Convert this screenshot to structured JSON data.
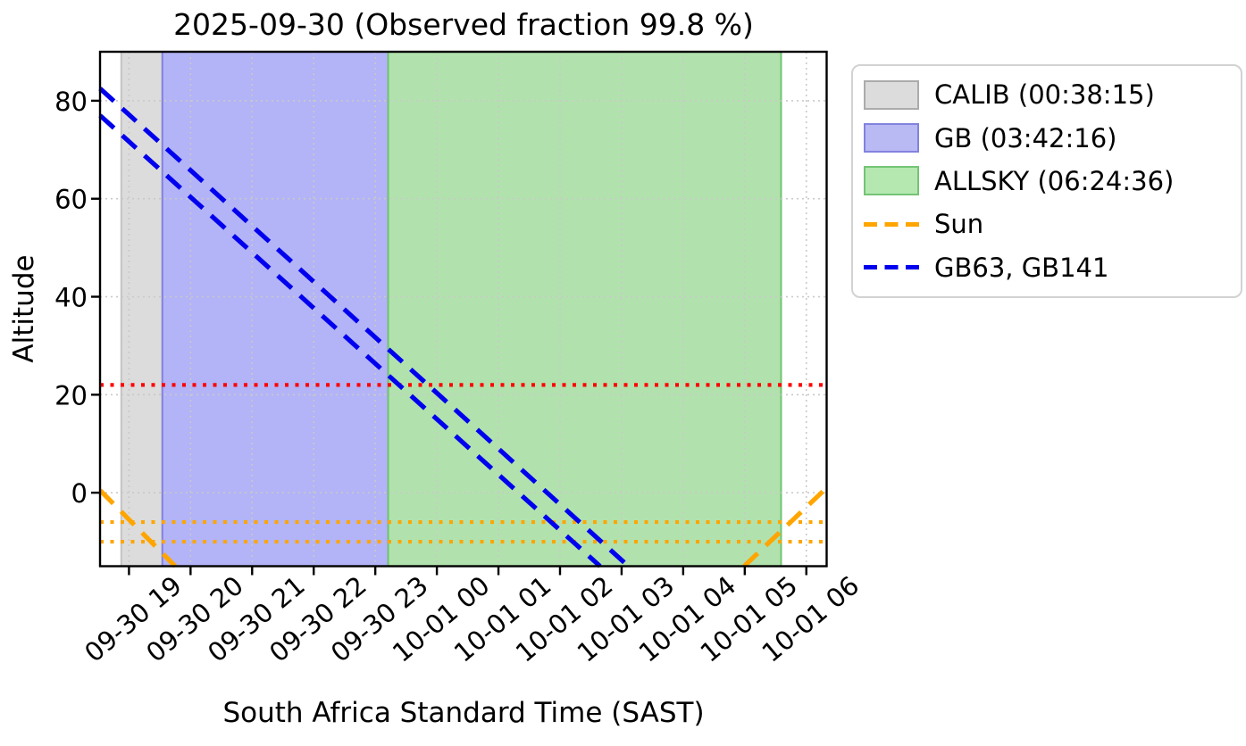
{
  "chart_data": {
    "type": "line",
    "title": "2025-09-30 (Observed fraction 99.8 %)",
    "xlabel": "South Africa Standard Time (SAST)",
    "ylabel": "Altitude",
    "x_unit": "hours since 2025-09-30 00:00 SAST",
    "xlim": [
      18.53,
      30.33
    ],
    "ylim": [
      -15,
      90
    ],
    "grid": true,
    "yticks": [
      0,
      20,
      40,
      60,
      80
    ],
    "xticks": [
      {
        "hour": 19,
        "label": "09-30 19"
      },
      {
        "hour": 20,
        "label": "09-30 20"
      },
      {
        "hour": 21,
        "label": "09-30 21"
      },
      {
        "hour": 22,
        "label": "09-30 22"
      },
      {
        "hour": 23,
        "label": "09-30 23"
      },
      {
        "hour": 24,
        "label": "10-01 00"
      },
      {
        "hour": 25,
        "label": "10-01 01"
      },
      {
        "hour": 26,
        "label": "10-01 02"
      },
      {
        "hour": 27,
        "label": "10-01 03"
      },
      {
        "hour": 28,
        "label": "10-01 04"
      },
      {
        "hour": 29,
        "label": "10-01 05"
      },
      {
        "hour": 30,
        "label": "10-01 06"
      }
    ],
    "regions": [
      {
        "name": "CALIB",
        "duration": "00:38:15",
        "start_hour": 18.875,
        "end_hour": 19.542,
        "fill": "#dcdcdc",
        "edge": "#c3c3c3"
      },
      {
        "name": "GB",
        "duration": "03:42:16",
        "start_hour": 19.542,
        "end_hour": 23.21,
        "fill": "#b3b3f7",
        "edge": "#8282df"
      },
      {
        "name": "ALLSKY",
        "duration": "06:24:36",
        "start_hour": 23.21,
        "end_hour": 29.59,
        "fill": "#b1e2ad",
        "edge": "#70c570"
      }
    ],
    "hlines": [
      {
        "name": "elevation-limit-line",
        "y": 22,
        "color": "#ff0000"
      },
      {
        "name": "sun-alt-minus6-line",
        "y": -6,
        "color": "#ffa500"
      },
      {
        "name": "sun-alt-minus10-line",
        "y": -10,
        "color": "#ffa500"
      }
    ],
    "series": [
      {
        "name": "Sun",
        "color": "#ffa500",
        "segments": [
          [
            [
              18.53,
              0.5
            ],
            [
              19.75,
              -15.0
            ]
          ],
          [
            [
              28.99,
              -15.0
            ],
            [
              30.33,
              1.0
            ]
          ]
        ]
      },
      {
        "name": "GB63, GB141",
        "color": "#0000ee",
        "segments": [
          [
            [
              18.53,
              82.5
            ],
            [
              27.11,
              -15.0
            ]
          ],
          [
            [
              18.53,
              77.0
            ],
            [
              26.65,
              -15.0
            ]
          ]
        ]
      }
    ],
    "legend": {
      "position": "outside-upper-right",
      "items": [
        {
          "label": "CALIB (00:38:15)",
          "swatch": "patch",
          "fill": "#dcdcdc",
          "edge": "#ababab"
        },
        {
          "label": "GB (03:42:16)",
          "swatch": "patch",
          "fill": "#b9b9f4",
          "edge": "#8282df"
        },
        {
          "label": "ALLSKY (06:24:36)",
          "swatch": "patch",
          "fill": "#b5e8b1",
          "edge": "#74c474"
        },
        {
          "label": "Sun",
          "swatch": "dashed-line",
          "color": "#ffa500"
        },
        {
          "label": "GB63, GB141",
          "swatch": "dashed-line",
          "color": "#0000ee"
        }
      ]
    },
    "style": {
      "grid_color": "#c9c9c9",
      "spine_color": "#000000",
      "background": "#ffffff"
    }
  }
}
